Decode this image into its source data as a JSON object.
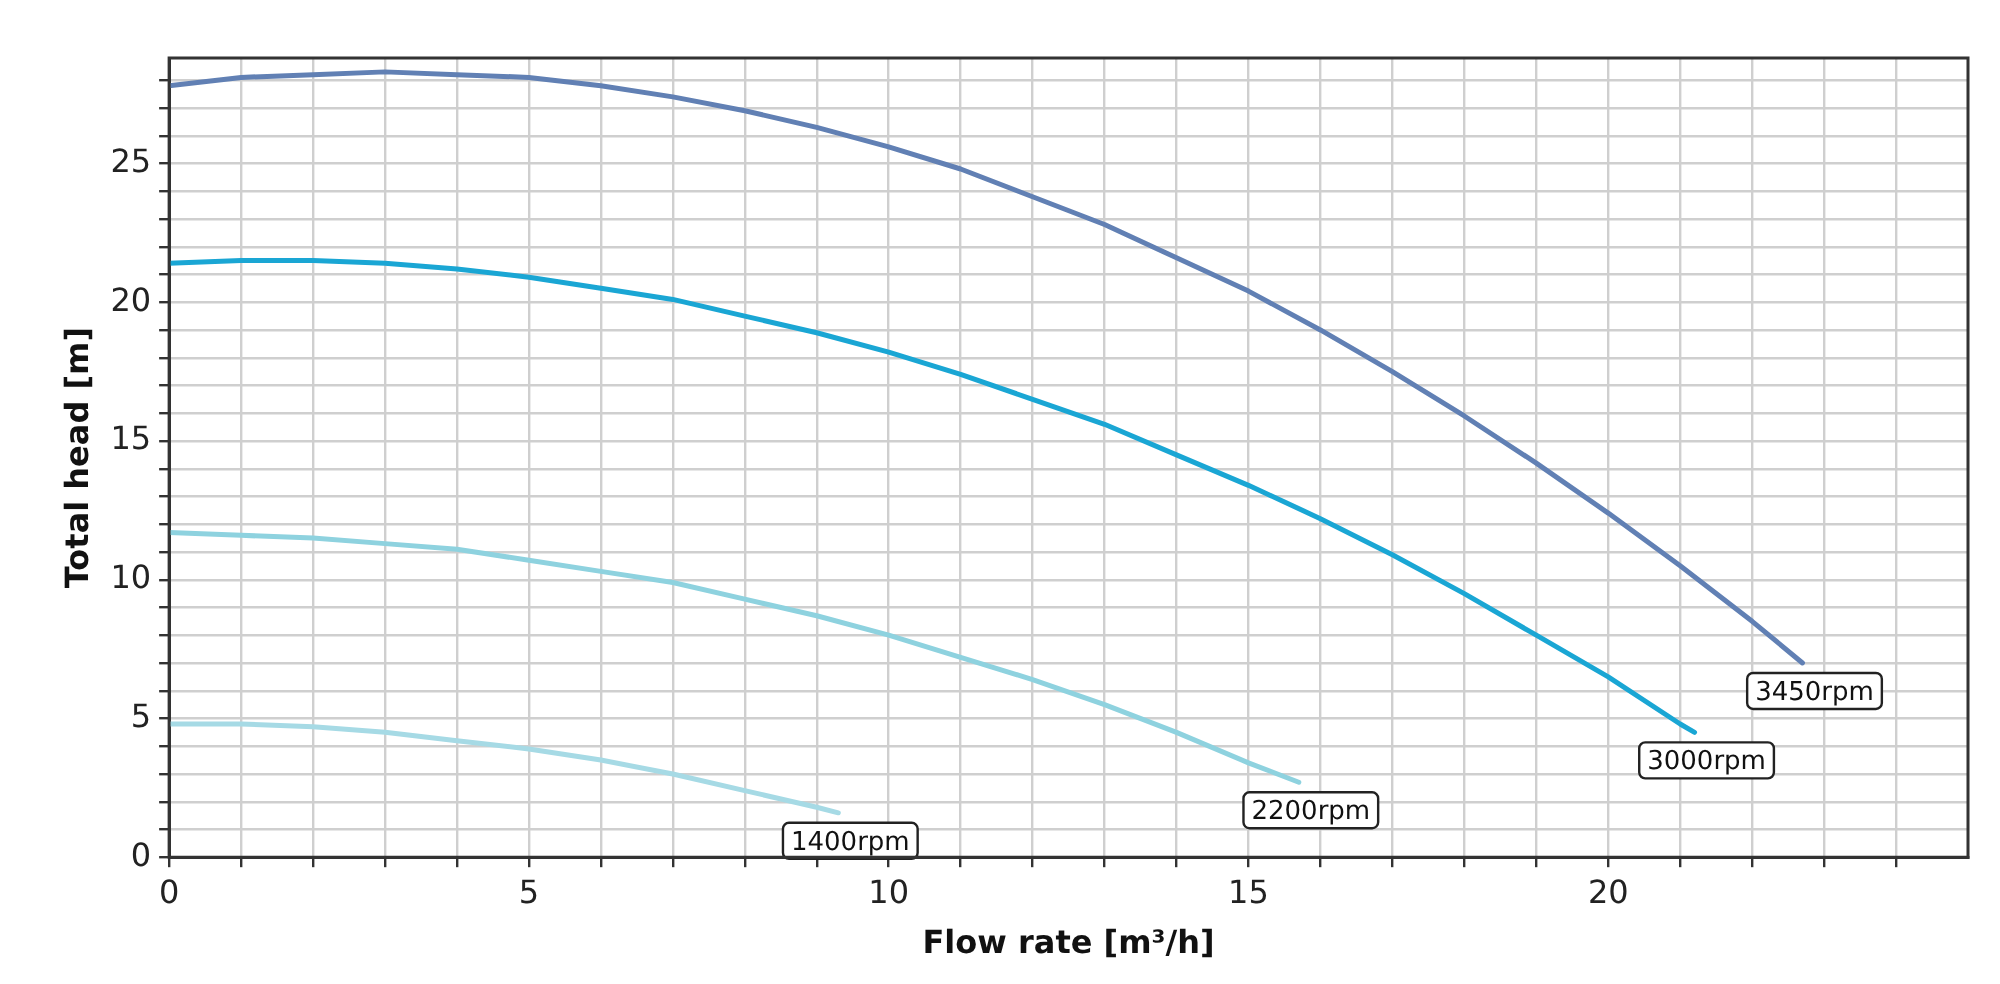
{
  "chart_data": {
    "type": "line",
    "xlabel": "Flow rate [m³/h]",
    "ylabel": "Total head [m]",
    "xlim": [
      0,
      25
    ],
    "ylim": [
      0,
      28.8
    ],
    "xticks": [
      0,
      {
        "value": 1,
        "label": null
      },
      {
        "value": 2,
        "label": null
      },
      {
        "value": 3,
        "label": null
      },
      {
        "value": 4,
        "label": null
      },
      5,
      {
        "value": 6,
        "label": null
      },
      {
        "value": 7,
        "label": null
      },
      {
        "value": 8,
        "label": null
      },
      {
        "value": 9,
        "label": null
      },
      10,
      {
        "value": 11,
        "label": null
      },
      {
        "value": 12,
        "label": null
      },
      {
        "value": 13,
        "label": null
      },
      {
        "value": 14,
        "label": null
      },
      15,
      {
        "value": 16,
        "label": null
      },
      {
        "value": 17,
        "label": null
      },
      {
        "value": 18,
        "label": null
      },
      {
        "value": 19,
        "label": null
      },
      20,
      {
        "value": 21,
        "label": null
      },
      {
        "value": 22,
        "label": null
      },
      {
        "value": 23,
        "label": null
      },
      {
        "value": 24,
        "label": null
      }
    ],
    "yticks": [
      0,
      {
        "value": 1,
        "label": null
      },
      {
        "value": 2,
        "label": null
      },
      {
        "value": 3,
        "label": null
      },
      {
        "value": 4,
        "label": null
      },
      5,
      {
        "value": 6,
        "label": null
      },
      {
        "value": 7,
        "label": null
      },
      {
        "value": 8,
        "label": null
      },
      {
        "value": 9,
        "label": null
      },
      10,
      {
        "value": 11,
        "label": null
      },
      {
        "value": 12,
        "label": null
      },
      {
        "value": 13,
        "label": null
      },
      {
        "value": 14,
        "label": null
      },
      15,
      {
        "value": 16,
        "label": null
      },
      {
        "value": 17,
        "label": null
      },
      {
        "value": 18,
        "label": null
      },
      {
        "value": 19,
        "label": null
      },
      20,
      {
        "value": 21,
        "label": null
      },
      {
        "value": 22,
        "label": null
      },
      {
        "value": 23,
        "label": null
      },
      {
        "value": 24,
        "label": null
      },
      25,
      {
        "value": 26,
        "label": null
      },
      {
        "value": 27,
        "label": null
      },
      {
        "value": 28,
        "label": null
      }
    ],
    "grid": true,
    "legend": false,
    "marker": "none",
    "line_style": "solid",
    "series": [
      {
        "name": "3450rpm",
        "color": "#6180b4",
        "x": [
          0,
          1,
          2,
          3,
          4,
          5,
          6,
          7,
          8,
          9,
          10,
          11,
          12,
          13,
          14,
          15,
          16,
          17,
          18,
          19,
          20,
          21,
          22,
          22.7
        ],
        "values": [
          27.8,
          28.1,
          28.2,
          28.3,
          28.2,
          28.1,
          27.8,
          27.4,
          26.9,
          26.3,
          25.6,
          24.8,
          23.8,
          22.8,
          21.6,
          20.4,
          19.0,
          17.5,
          15.9,
          14.2,
          12.4,
          10.5,
          8.5,
          7.0
        ]
      },
      {
        "name": "3000rpm",
        "color": "#1aa6d4",
        "x": [
          0,
          1,
          2,
          3,
          4,
          5,
          6,
          7,
          8,
          9,
          10,
          11,
          12,
          13,
          14,
          15,
          16,
          17,
          18,
          19,
          20,
          21,
          21.2
        ],
        "values": [
          21.4,
          21.5,
          21.5,
          21.4,
          21.2,
          20.9,
          20.5,
          20.1,
          19.5,
          18.9,
          18.2,
          17.4,
          16.5,
          15.6,
          14.5,
          13.4,
          12.2,
          10.9,
          9.5,
          8.0,
          6.5,
          4.8,
          4.5
        ]
      },
      {
        "name": "2200rpm",
        "color": "#8ed2df",
        "x": [
          0,
          1,
          2,
          3,
          4,
          5,
          6,
          7,
          8,
          9,
          10,
          11,
          12,
          13,
          14,
          15,
          15.7
        ],
        "values": [
          11.7,
          11.6,
          11.5,
          11.3,
          11.1,
          10.7,
          10.3,
          9.9,
          9.3,
          8.7,
          8.0,
          7.2,
          6.4,
          5.5,
          4.5,
          3.4,
          2.7
        ]
      },
      {
        "name": "1400rpm",
        "color": "#a6dae5",
        "x": [
          0,
          1,
          2,
          3,
          4,
          5,
          6,
          7,
          8,
          9,
          9.3
        ],
        "values": [
          4.8,
          4.8,
          4.7,
          4.5,
          4.2,
          3.9,
          3.5,
          3.0,
          2.4,
          1.8,
          1.6
        ]
      }
    ]
  }
}
